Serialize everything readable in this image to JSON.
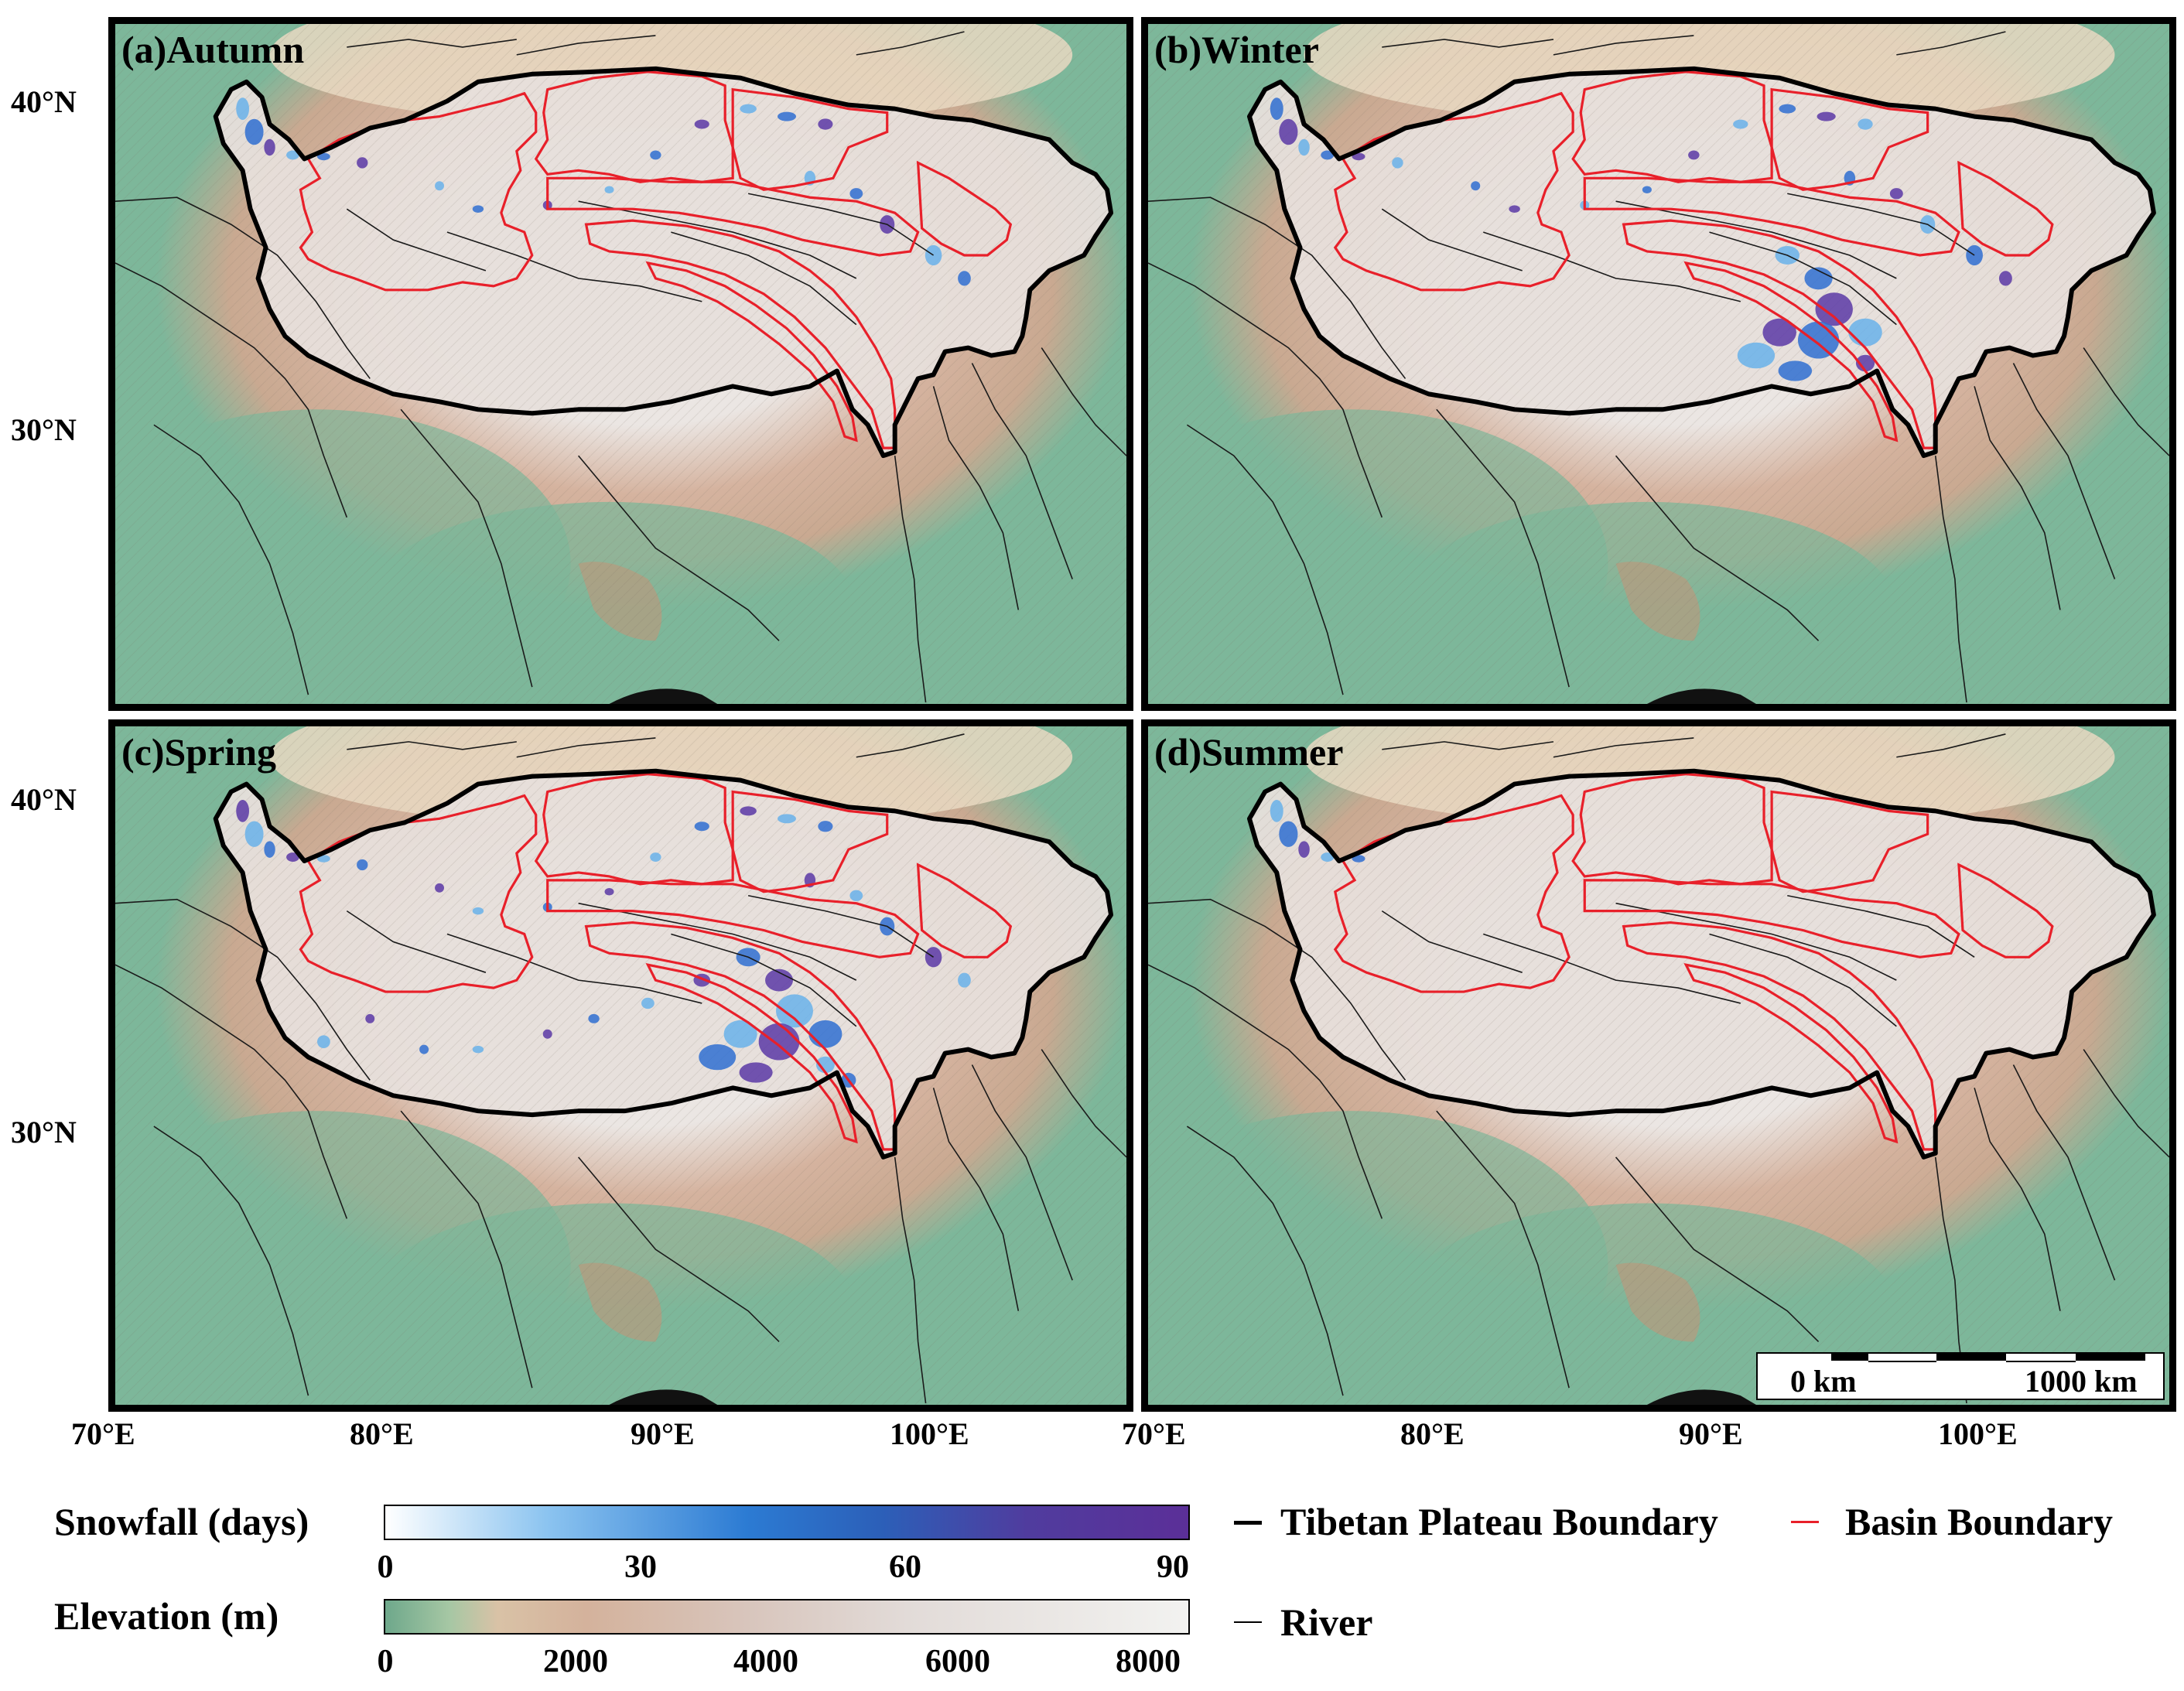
{
  "panels": [
    {
      "label": "(a)Autumn",
      "snow_level": 0.45
    },
    {
      "label": "(b)Winter",
      "snow_level": 0.65
    },
    {
      "label": "(c)Spring",
      "snow_level": 0.85
    },
    {
      "label": "(d)Summer",
      "snow_level": 0.12
    }
  ],
  "axes": {
    "lat_ticks": [
      "40°N",
      "30°N"
    ],
    "lon_ticks": [
      "70°E",
      "80°E",
      "90°E",
      "100°E"
    ]
  },
  "legend": {
    "snowfall": {
      "title": "Snowfall (days)",
      "ticks": [
        "0",
        "30",
        "60",
        "90"
      ],
      "range": [
        0,
        90
      ]
    },
    "elevation": {
      "title": "Elevation (m)",
      "ticks": [
        "0",
        "2000",
        "4000",
        "6000",
        "8000"
      ],
      "range": [
        0,
        8400
      ]
    },
    "lines": [
      {
        "label": "Tibetan Plateau Boundary",
        "color": "#000000"
      },
      {
        "label": "Basin Boundary",
        "color": "#e8202a"
      },
      {
        "label": "River",
        "color": "#000000"
      }
    ]
  },
  "scalebar": {
    "left": "0 km",
    "right": "1000 km"
  },
  "colors": {
    "lowland": "#7db79a",
    "midland": "#d5b39f",
    "highland": "#ebe6e3",
    "snow_light": "#69b2ea",
    "snow_mid": "#2f6fd1",
    "snow_dark": "#5b38a6",
    "desert": "#e9d9c2"
  }
}
